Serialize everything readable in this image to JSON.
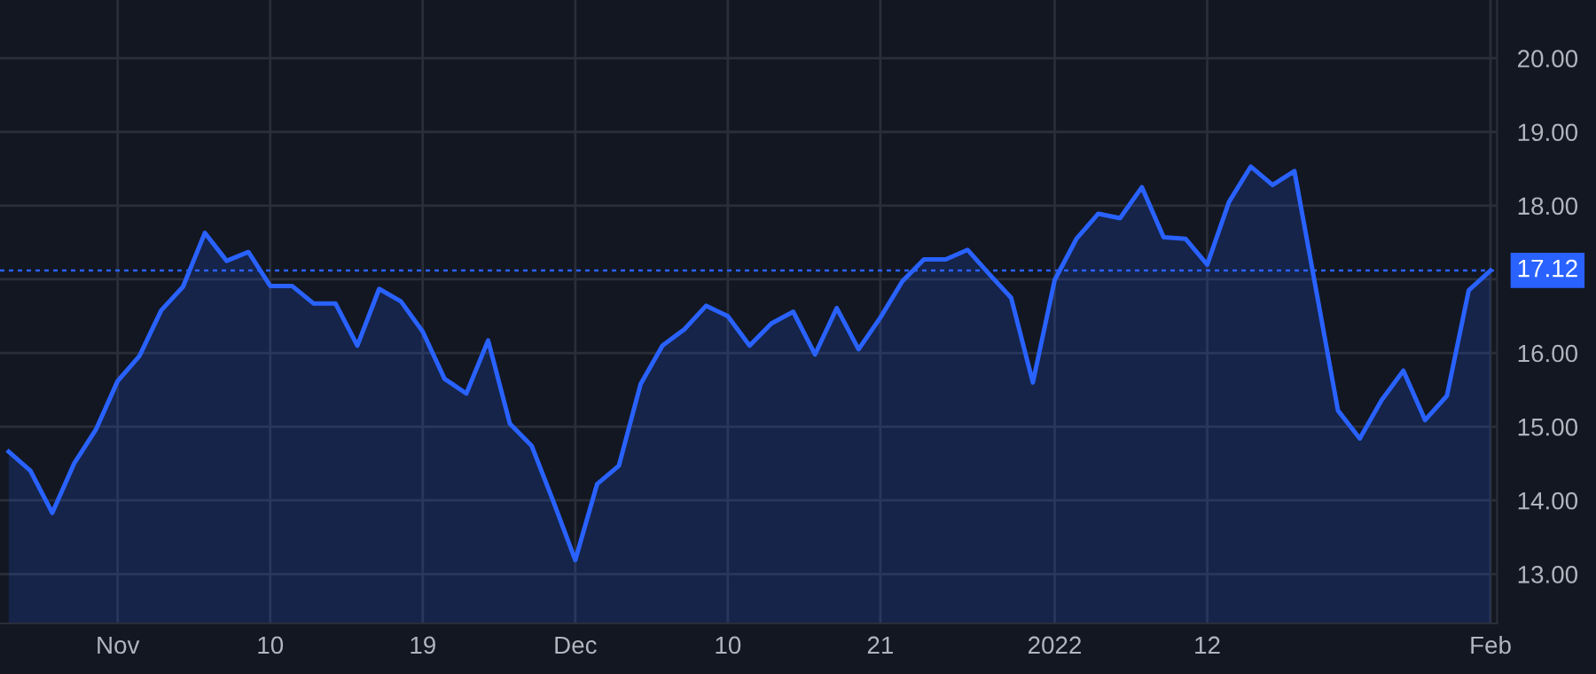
{
  "chart_data": {
    "type": "area",
    "categories": [
      null,
      null,
      null,
      null,
      null,
      "Nov",
      null,
      null,
      null,
      null,
      null,
      null,
      "10",
      null,
      null,
      null,
      null,
      null,
      null,
      "19",
      null,
      null,
      null,
      null,
      null,
      null,
      "Dec",
      null,
      null,
      null,
      null,
      null,
      null,
      "10",
      null,
      null,
      null,
      null,
      null,
      null,
      "21",
      null,
      null,
      null,
      null,
      null,
      null,
      null,
      "2022",
      null,
      null,
      null,
      null,
      null,
      null,
      "12",
      null,
      null,
      null,
      null,
      null,
      null,
      null,
      null,
      null,
      null,
      null,
      null,
      "Feb"
    ],
    "series": [
      {
        "color": "#2962ff",
        "values": [
          14.66,
          14.4,
          13.83,
          14.5,
          14.96,
          15.62,
          15.96,
          16.58,
          16.9,
          17.63,
          17.25,
          17.37,
          16.91,
          16.91,
          16.67,
          16.67,
          16.1,
          16.87,
          16.7,
          16.29,
          15.65,
          15.45,
          16.17,
          15.04,
          14.74,
          13.98,
          13.19,
          14.22,
          14.47,
          15.58,
          16.1,
          16.32,
          16.64,
          16.5,
          16.1,
          16.4,
          16.56,
          15.98,
          16.61,
          16.05,
          16.48,
          16.97,
          17.27,
          17.27,
          17.4,
          17.07,
          16.75,
          15.6,
          16.99,
          17.55,
          17.89,
          17.83,
          18.25,
          17.57,
          17.55,
          17.2,
          18.05,
          18.53,
          18.28,
          18.47,
          16.85,
          15.22,
          14.84,
          15.36,
          15.76,
          15.09,
          15.42,
          16.85,
          17.12
        ]
      }
    ],
    "ylim": [
      12.33,
      20.79
    ],
    "yticks": [
      {
        "value": 13,
        "label": "13.00"
      },
      {
        "value": 14,
        "label": "14.00"
      },
      {
        "value": 15,
        "label": "15.00"
      },
      {
        "value": 16,
        "label": "16.00"
      },
      {
        "value": 17,
        "label": null
      },
      {
        "value": 18,
        "label": "18.00"
      },
      {
        "value": 19,
        "label": "19.00"
      },
      {
        "value": 20,
        "label": "20.00"
      }
    ],
    "ref_lines": [
      {
        "axis": "y",
        "value": 17.12,
        "label": "17.12",
        "color": "#2962ff",
        "line_style": "dotted"
      }
    ],
    "grid": true
  }
}
